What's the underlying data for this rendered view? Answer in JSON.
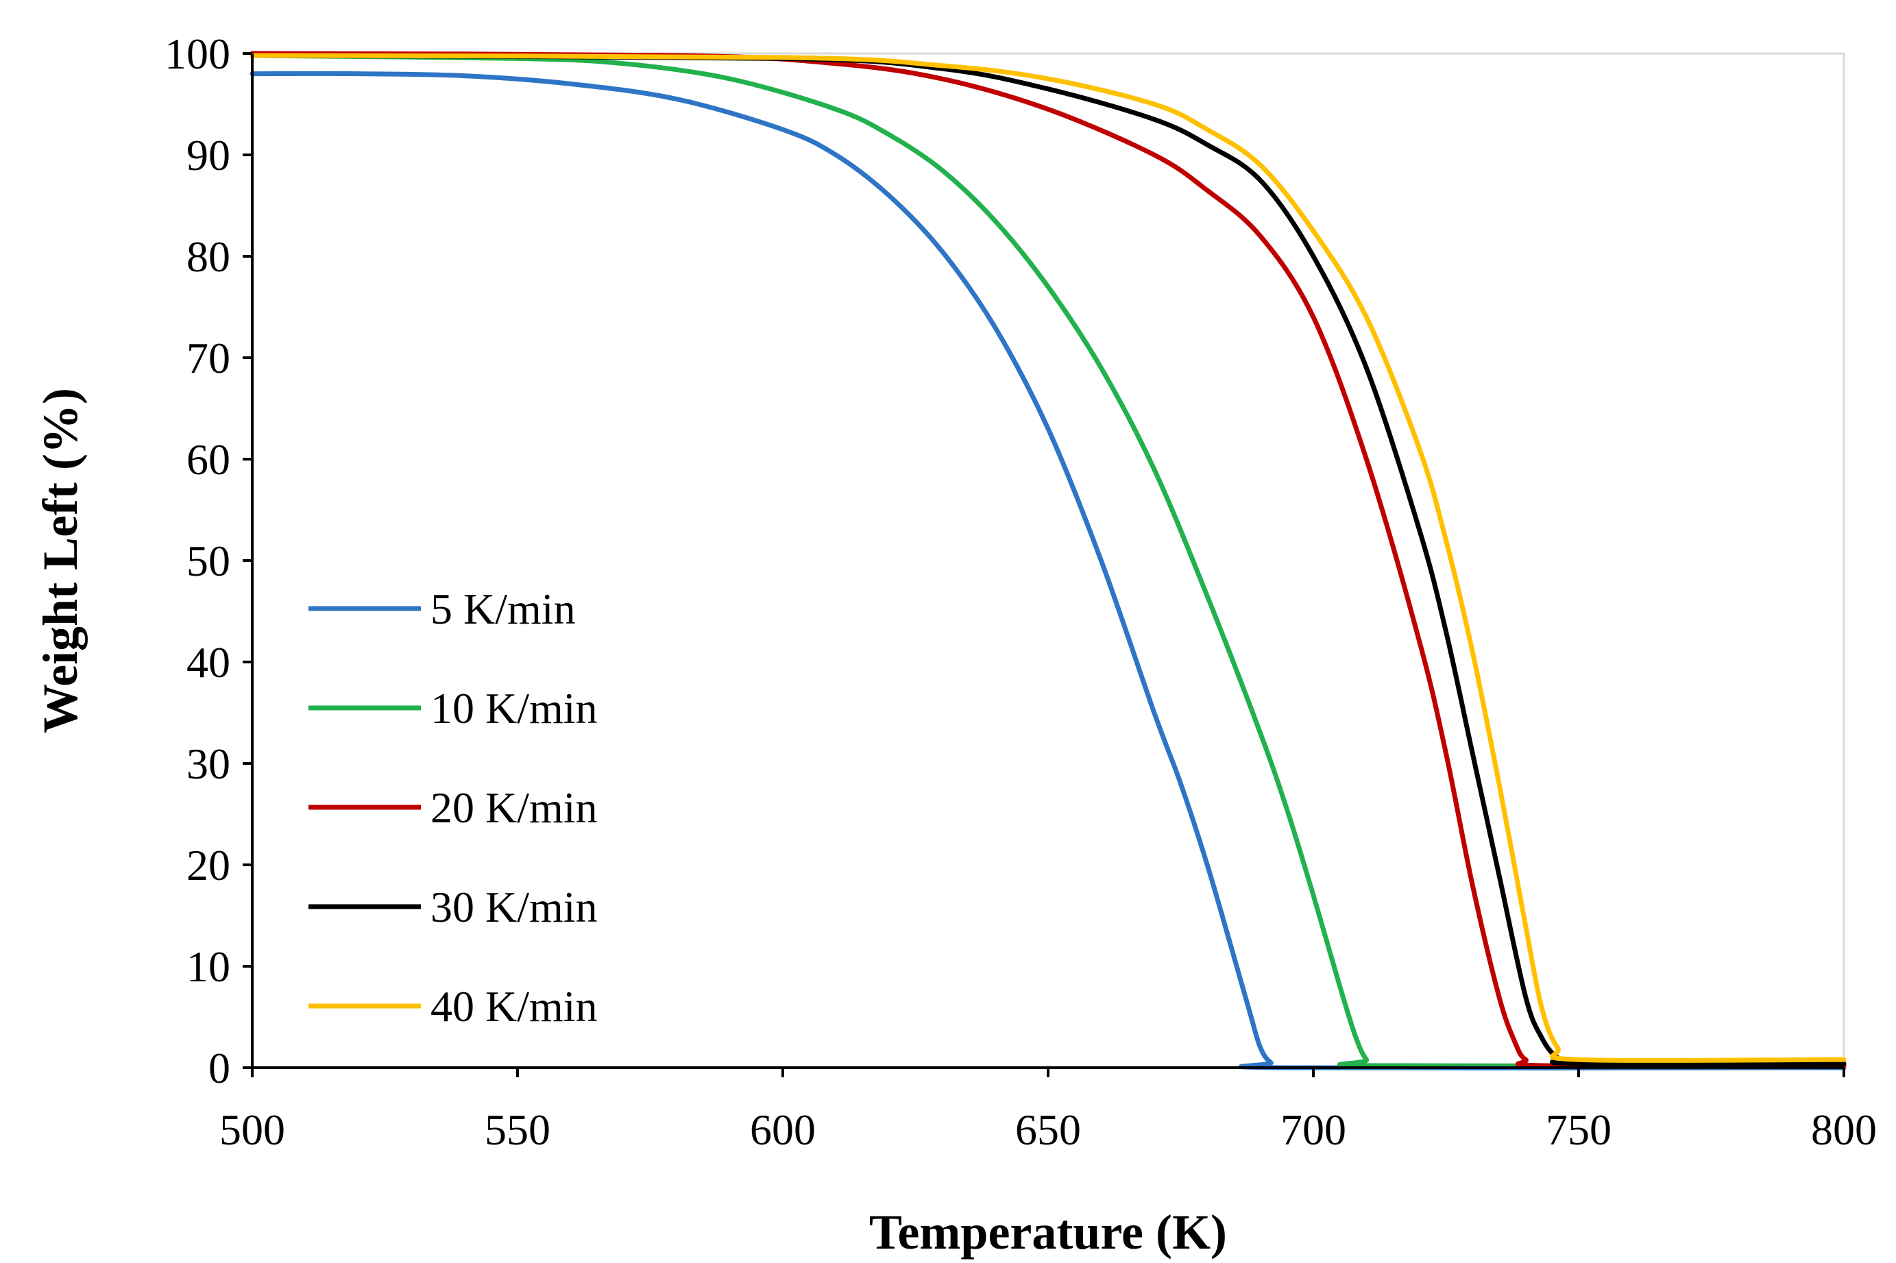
{
  "chart_data": {
    "type": "line",
    "title": "",
    "xlabel": "Temperature (K)",
    "ylabel": "Weight Left  (%)",
    "xlim": [
      500,
      800
    ],
    "ylim": [
      0,
      100
    ],
    "xticks": [
      500,
      550,
      600,
      650,
      700,
      750,
      800
    ],
    "yticks": [
      0,
      10,
      20,
      30,
      40,
      50,
      60,
      70,
      80,
      90,
      100
    ],
    "xtick_labels": [
      "500",
      "550",
      "600",
      "650",
      "700",
      "750",
      "800"
    ],
    "ytick_labels": [
      "0",
      "10",
      "20",
      "30",
      "40",
      "50",
      "60",
      "70",
      "80",
      "90",
      "100"
    ],
    "grid": false,
    "legend_position": "left-lower",
    "series": [
      {
        "name": "5 K/min",
        "color": "#2E75C6",
        "points": [
          [
            500,
            98
          ],
          [
            520,
            98
          ],
          [
            540,
            97.8
          ],
          [
            560,
            97
          ],
          [
            580,
            95.5
          ],
          [
            600,
            92.5
          ],
          [
            610,
            90
          ],
          [
            620,
            86
          ],
          [
            630,
            80.5
          ],
          [
            640,
            73
          ],
          [
            650,
            63
          ],
          [
            660,
            50
          ],
          [
            670,
            35
          ],
          [
            675,
            28
          ],
          [
            680,
            20
          ],
          [
            685,
            11
          ],
          [
            688,
            5.5
          ],
          [
            690,
            2
          ],
          [
            692,
            0.5
          ],
          [
            695,
            0
          ],
          [
            800,
            0
          ]
        ]
      },
      {
        "name": "10 K/min",
        "color": "#22B14C",
        "points": [
          [
            500,
            99.8
          ],
          [
            550,
            99.5
          ],
          [
            570,
            99
          ],
          [
            590,
            97.5
          ],
          [
            610,
            94.5
          ],
          [
            620,
            92
          ],
          [
            630,
            88.5
          ],
          [
            640,
            83.5
          ],
          [
            650,
            77
          ],
          [
            660,
            69
          ],
          [
            670,
            59
          ],
          [
            680,
            46.5
          ],
          [
            690,
            33
          ],
          [
            695,
            25.5
          ],
          [
            700,
            17
          ],
          [
            705,
            8
          ],
          [
            708,
            3
          ],
          [
            710,
            0.8
          ],
          [
            712,
            0.2
          ],
          [
            800,
            0.2
          ]
        ]
      },
      {
        "name": "20 K/min",
        "color": "#C00000",
        "points": [
          [
            500,
            100
          ],
          [
            580,
            99.8
          ],
          [
            610,
            99
          ],
          [
            630,
            97.5
          ],
          [
            650,
            94.5
          ],
          [
            670,
            90
          ],
          [
            680,
            86.5
          ],
          [
            690,
            82
          ],
          [
            700,
            74
          ],
          [
            710,
            60
          ],
          [
            720,
            42
          ],
          [
            725,
            31
          ],
          [
            730,
            18
          ],
          [
            735,
            7
          ],
          [
            738,
            2.5
          ],
          [
            740,
            0.8
          ],
          [
            744,
            0.2
          ],
          [
            800,
            0.2
          ]
        ]
      },
      {
        "name": "30 K/min",
        "color": "#000000",
        "points": [
          [
            500,
            99.8
          ],
          [
            600,
            99.5
          ],
          [
            630,
            98.5
          ],
          [
            650,
            96.5
          ],
          [
            670,
            93.5
          ],
          [
            680,
            91
          ],
          [
            690,
            87.5
          ],
          [
            700,
            80
          ],
          [
            710,
            69
          ],
          [
            720,
            53
          ],
          [
            725,
            43
          ],
          [
            730,
            31
          ],
          [
            735,
            19
          ],
          [
            740,
            7
          ],
          [
            743,
            3
          ],
          [
            746,
            1
          ],
          [
            750,
            0.4
          ],
          [
            800,
            0.4
          ]
        ]
      },
      {
        "name": "40 K/min",
        "color": "#FFC000",
        "points": [
          [
            500,
            99.8
          ],
          [
            600,
            99.6
          ],
          [
            630,
            98.8
          ],
          [
            650,
            97.5
          ],
          [
            670,
            95
          ],
          [
            680,
            92.5
          ],
          [
            690,
            89
          ],
          [
            700,
            82.5
          ],
          [
            710,
            74
          ],
          [
            720,
            61
          ],
          [
            725,
            52
          ],
          [
            730,
            41
          ],
          [
            735,
            28
          ],
          [
            740,
            14
          ],
          [
            743,
            6
          ],
          [
            746,
            2
          ],
          [
            750,
            0.8
          ],
          [
            800,
            0.8
          ]
        ]
      }
    ]
  }
}
